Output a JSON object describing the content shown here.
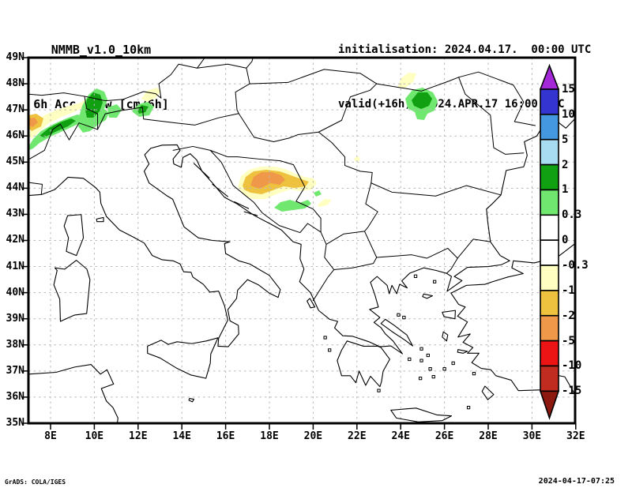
{
  "header": {
    "model_title": "NMMB_v1.0_10km",
    "field_title": "6h Acc.Snow [cm/6h]",
    "init_line": "initialisation: 2024.04.17.  00:00 UTC",
    "valid_line": "valid(+16h): 2024.APR.17 16:00 UTC"
  },
  "footer": {
    "grads_credit": "GrADS: COLA/IGES",
    "creation_timestamp": "2024-04-17-07:25"
  },
  "map": {
    "lat_ticks": [
      "49N",
      "48N",
      "47N",
      "46N",
      "45N",
      "44N",
      "43N",
      "42N",
      "41N",
      "40N",
      "39N",
      "38N",
      "37N",
      "36N",
      "35N"
    ],
    "lon_ticks": [
      "8E",
      "10E",
      "12E",
      "14E",
      "16E",
      "18E",
      "20E",
      "22E",
      "24E",
      "26E",
      "28E",
      "30E",
      "32E"
    ]
  },
  "palette": {
    "pale_yellow": "#ffffc2",
    "amber": "#eec23f",
    "orange": "#f0984a",
    "light_green": "#70e870",
    "dark_green": "#11a011",
    "white": "#ffffff",
    "light_blue": "#a8dcf0",
    "mid_blue": "#4498e0",
    "dark_blue": "#3434d0",
    "purple": "#a428d8",
    "red": "#ec1414",
    "dark_red": "#c02d20",
    "maroon": "#8c1810",
    "grid_gray": "#b8b8b8"
  },
  "colorbar": {
    "labels": [
      "15",
      "10",
      "5",
      "2",
      "1",
      "0.3",
      "0",
      "-0.3",
      "-1",
      "-2",
      "-5",
      "-10",
      "-15"
    ],
    "segment_colors": [
      "#3434d0",
      "#4498e0",
      "#a8dcf0",
      "#11a011",
      "#70e870",
      "#ffffff",
      "#ffffff",
      "#ffffc2",
      "#eec23f",
      "#f0984a",
      "#ec1414",
      "#c02d20"
    ],
    "arrow_top_color": "#a428d8",
    "arrow_bottom_color": "#8c1810"
  },
  "chart_data": {
    "type": "heatmap",
    "title": "6h Acc.Snow [cm/6h]",
    "model": "NMMB_v1.0_10km",
    "initialisation": "2024.04.17. 00:00 UTC",
    "valid": "2024.APR.17 16:00 UTC",
    "lead_hours": 16,
    "units": "cm/6h",
    "projection": "lat-lon",
    "lon_range": [
      7,
      32
    ],
    "lat_range": [
      35,
      49
    ],
    "xlabel_ticks": [
      "8E",
      "10E",
      "12E",
      "14E",
      "16E",
      "18E",
      "20E",
      "22E",
      "24E",
      "26E",
      "28E",
      "30E",
      "32E"
    ],
    "ylabel_ticks": [
      "35N",
      "36N",
      "37N",
      "38N",
      "39N",
      "40N",
      "41N",
      "42N",
      "43N",
      "44N",
      "45N",
      "46N",
      "47N",
      "48N",
      "49N"
    ],
    "grid": true,
    "legend_position": "right colorbar",
    "color_scale_levels": [
      15,
      10,
      5,
      2,
      1,
      0.3,
      0,
      -0.3,
      -1,
      -2,
      -5,
      -10,
      -15
    ],
    "color_scale_colors": [
      "#a428d8",
      "#3434d0",
      "#4498e0",
      "#a8dcf0",
      "#11a011",
      "#70e870",
      "#ffffff",
      "#ffffff",
      "#ffffc2",
      "#eec23f",
      "#f0984a",
      "#ec1414",
      "#c02d20",
      "#8c1810"
    ],
    "snow_regions": [
      {
        "location": "Western Alps ~7.3E,46.5N",
        "value_cm": "-5 to -1 (orange core with amber ring)"
      },
      {
        "location": "Alps band 7-9.5E,46.7-47.3N",
        "value_cm": "-1 to -0.3 (pale yellow band)"
      },
      {
        "location": "Alps band 7-9.5E,46-46.9N",
        "value_cm": "0.3 to 2 (light green band, dark green core 1-2)"
      },
      {
        "location": "Central Alps ~10E,46.5-47.6N",
        "value_cm": "0.3 to 2 (dark green core 1-2)"
      },
      {
        "location": "Eastern Alps ~12.2E,47N",
        "value_cm": "0.3 to 2"
      },
      {
        "location": "~12.7E,47.6N",
        "value_cm": "-1 to -0.3 (pale yellow)"
      },
      {
        "location": "Eastern Carpathians ~25E,47.3N",
        "value_cm": "0.3 to 2 (dark green core 1-2)"
      },
      {
        "location": "~24.5E,48.2N",
        "value_cm": "-1 to -0.3 (pale yellow streak)"
      },
      {
        "location": "Dinaric Alps 16.7-20.2E,43.5-44.8N",
        "value_cm": "-5 to -0.3 (orange core -5 to -2)"
      },
      {
        "location": "~18.5-19.9E,43.2N",
        "value_cm": "0.3 to 1 (green crescent)"
      },
      {
        "location": "~20.5E,43.5N",
        "value_cm": "-1 to -0.3"
      },
      {
        "location": "~22E,45.1N",
        "value_cm": "-1 to -0.3 (tiny spot)"
      }
    ]
  }
}
